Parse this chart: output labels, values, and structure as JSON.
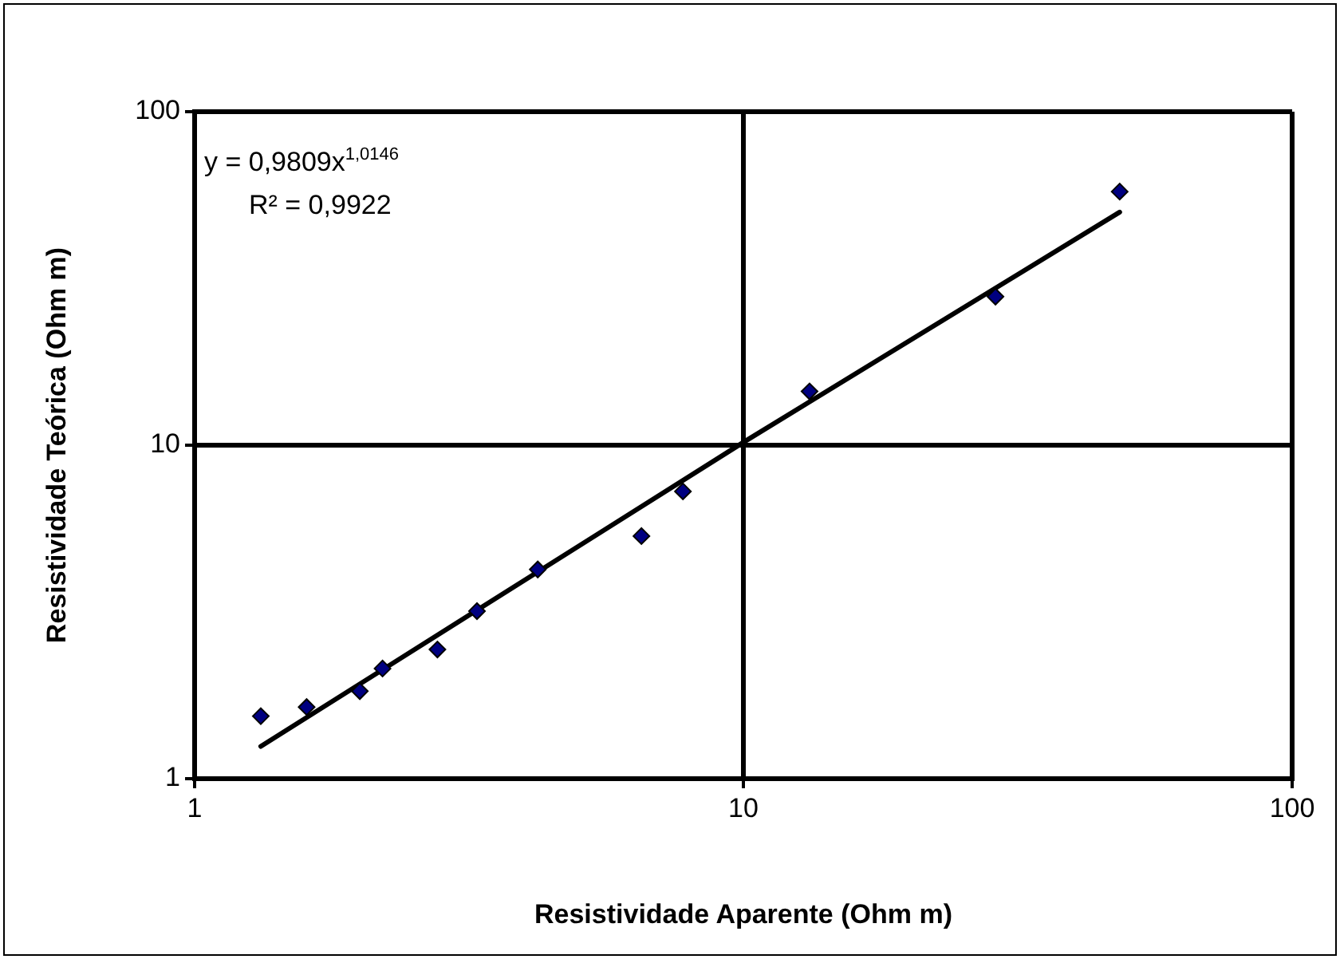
{
  "chart_data": {
    "type": "scatter",
    "xlabel": "Resistividade Aparente (Ohm m)",
    "ylabel": "Resistividade Teórica (Ohm m)",
    "log": "xy",
    "xlim": [
      1,
      100
    ],
    "ylim": [
      1,
      100
    ],
    "xticks": [
      1,
      10,
      100
    ],
    "yticks": [
      1,
      10,
      100
    ],
    "grid": true,
    "legend": false,
    "marker": "diamond",
    "annotations": [
      "y = 0,9809x$^{1,0146}$",
      "R² = 0,9922"
    ],
    "series": [
      {
        "color": "#000080",
        "x": [
          1.32,
          1.6,
          2.0,
          2.2,
          2.77,
          3.27,
          4.22,
          6.52,
          7.76,
          13.2,
          28.8,
          48.5
        ],
        "values": [
          1.54,
          1.64,
          1.83,
          2.14,
          2.44,
          3.18,
          4.24,
          5.34,
          7.27,
          14.5,
          27.9,
          57.6
        ]
      },
      {
        "type": "line",
        "color": "#000000",
        "marker": "none",
        "line_style": "solid",
        "x": [
          1.32,
          10,
          48.5
        ],
        "values": [
          1.25,
          10.2,
          50
        ]
      }
    ]
  }
}
